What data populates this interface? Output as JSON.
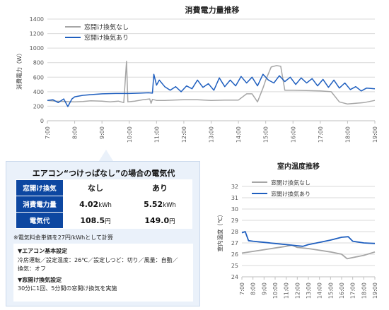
{
  "chart_data": [
    {
      "type": "line",
      "title": "消費電力量推移",
      "ylabel": "消費電力（W）",
      "ylim": [
        0,
        1400
      ],
      "yticks": [
        "0",
        "200",
        "400",
        "600",
        "800",
        "1000",
        "1200",
        "1400"
      ],
      "x_labels": [
        "7:00",
        "8:00",
        "9:00",
        "10:00",
        "11:00",
        "12:00",
        "13:00",
        "14:00",
        "15:00",
        "16:00",
        "17:00",
        "18:00",
        "19:00"
      ],
      "legend": "top-left",
      "series": [
        {
          "name": "窓開け換気なし",
          "color": "#a6a6a6",
          "points": [
            [
              7,
              280
            ],
            [
              7.3,
              270
            ],
            [
              7.6,
              265
            ],
            [
              8.0,
              260
            ],
            [
              8.3,
              265
            ],
            [
              8.6,
              275
            ],
            [
              9.0,
              270
            ],
            [
              9.3,
              260
            ],
            [
              9.6,
              270
            ],
            [
              9.8,
              250
            ],
            [
              9.9,
              820
            ],
            [
              9.95,
              260
            ],
            [
              10.2,
              270
            ],
            [
              10.5,
              290
            ],
            [
              10.75,
              300
            ],
            [
              10.8,
              240
            ],
            [
              10.85,
              295
            ],
            [
              11.0,
              280
            ],
            [
              11.3,
              280
            ],
            [
              11.6,
              285
            ],
            [
              12.0,
              290
            ],
            [
              12.5,
              290
            ],
            [
              13.0,
              280
            ],
            [
              13.5,
              285
            ],
            [
              14.0,
              285
            ],
            [
              14.3,
              370
            ],
            [
              14.5,
              370
            ],
            [
              14.7,
              260
            ],
            [
              14.9,
              450
            ],
            [
              15.0,
              560
            ],
            [
              15.2,
              740
            ],
            [
              15.4,
              760
            ],
            [
              15.55,
              750
            ],
            [
              15.7,
              420
            ],
            [
              16.0,
              420
            ],
            [
              16.5,
              415
            ],
            [
              17.0,
              410
            ],
            [
              17.4,
              400
            ],
            [
              17.7,
              260
            ],
            [
              18.0,
              230
            ],
            [
              18.3,
              240
            ],
            [
              18.6,
              250
            ],
            [
              19.0,
              280
            ]
          ]
        },
        {
          "name": "窓開け換気あり",
          "color": "#1f5fbf",
          "points": [
            [
              7,
              280
            ],
            [
              7.2,
              290
            ],
            [
              7.4,
              250
            ],
            [
              7.6,
              300
            ],
            [
              7.75,
              195
            ],
            [
              7.9,
              300
            ],
            [
              8.0,
              330
            ],
            [
              8.3,
              350
            ],
            [
              8.6,
              360
            ],
            [
              9.0,
              370
            ],
            [
              9.5,
              375
            ],
            [
              10.0,
              375
            ],
            [
              10.4,
              380
            ],
            [
              10.7,
              385
            ],
            [
              10.85,
              380
            ],
            [
              10.9,
              640
            ],
            [
              11.0,
              490
            ],
            [
              11.1,
              560
            ],
            [
              11.3,
              470
            ],
            [
              11.5,
              420
            ],
            [
              11.7,
              470
            ],
            [
              11.9,
              400
            ],
            [
              12.1,
              480
            ],
            [
              12.3,
              440
            ],
            [
              12.5,
              560
            ],
            [
              12.7,
              460
            ],
            [
              12.9,
              510
            ],
            [
              13.1,
              420
            ],
            [
              13.3,
              590
            ],
            [
              13.5,
              470
            ],
            [
              13.7,
              560
            ],
            [
              13.9,
              480
            ],
            [
              14.1,
              610
            ],
            [
              14.3,
              520
            ],
            [
              14.5,
              600
            ],
            [
              14.7,
              480
            ],
            [
              14.9,
              640
            ],
            [
              15.1,
              560
            ],
            [
              15.3,
              520
            ],
            [
              15.5,
              620
            ],
            [
              15.7,
              540
            ],
            [
              15.9,
              600
            ],
            [
              16.1,
              500
            ],
            [
              16.3,
              590
            ],
            [
              16.5,
              520
            ],
            [
              16.7,
              580
            ],
            [
              16.9,
              480
            ],
            [
              17.1,
              570
            ],
            [
              17.3,
              460
            ],
            [
              17.5,
              560
            ],
            [
              17.7,
              450
            ],
            [
              17.9,
              520
            ],
            [
              18.1,
              430
            ],
            [
              18.3,
              470
            ],
            [
              18.5,
              410
            ],
            [
              18.7,
              450
            ],
            [
              19.0,
              440
            ]
          ]
        }
      ]
    },
    {
      "type": "line",
      "title": "室内温度推移",
      "ylabel": "室内温度（℃）",
      "ylim": [
        24,
        32
      ],
      "yticks": [
        "24",
        "25",
        "26",
        "27",
        "28",
        "29",
        "30",
        "31",
        "32"
      ],
      "x_labels": [
        "7:00",
        "8:00",
        "9:00",
        "10:00",
        "11:00",
        "12:00",
        "13:00",
        "14:00",
        "15:00",
        "16:00",
        "17:00",
        "18:00",
        "19:00"
      ],
      "legend": "top-left",
      "series": [
        {
          "name": "窓開け換気なし",
          "color": "#a6a6a6",
          "points": [
            [
              7,
              26.1
            ],
            [
              8,
              26.25
            ],
            [
              9,
              26.4
            ],
            [
              10,
              26.55
            ],
            [
              11,
              26.7
            ],
            [
              11.5,
              26.8
            ],
            [
              12,
              26.6
            ],
            [
              13,
              26.5
            ],
            [
              14,
              26.35
            ],
            [
              15,
              26.2
            ],
            [
              16,
              26.0
            ],
            [
              16.5,
              25.6
            ],
            [
              17,
              25.7
            ],
            [
              18,
              25.9
            ],
            [
              19,
              26.2
            ]
          ]
        },
        {
          "name": "窓開け換気あり",
          "color": "#1f5fbf",
          "points": [
            [
              7,
              27.9
            ],
            [
              7.3,
              28.0
            ],
            [
              7.6,
              27.2
            ],
            [
              8,
              27.15
            ],
            [
              9,
              27.05
            ],
            [
              10,
              26.95
            ],
            [
              11,
              26.85
            ],
            [
              12,
              26.75
            ],
            [
              12.5,
              26.7
            ],
            [
              13,
              26.85
            ],
            [
              14,
              27.05
            ],
            [
              15,
              27.25
            ],
            [
              16,
              27.5
            ],
            [
              16.6,
              27.55
            ],
            [
              17,
              27.15
            ],
            [
              18,
              27.0
            ],
            [
              19,
              26.95
            ]
          ]
        }
      ]
    }
  ],
  "cost_card": {
    "title": "エアコン“つけっぱなし”の場合の電気代",
    "columns": [
      "窓開け換気",
      "なし",
      "あり"
    ],
    "rows": [
      {
        "label": "消費電力量",
        "none": "4.02",
        "with": "5.52",
        "unit": "kWh"
      },
      {
        "label": "電気代",
        "none": "108.5",
        "with": "149.0",
        "unit": "円"
      }
    ],
    "note": "※電気料金単価を27円/kWhとして計算",
    "settings": {
      "aircon_heading": "▼エアコン基本設定",
      "aircon_line1": "冷房運転／設定温度：26℃／設定しつど：切り／風量：自動／",
      "aircon_line2": "換気：オフ",
      "window_heading": "▼窓開け換気設定",
      "window_line": "30分に1回、5分間の窓開け換気を実施"
    }
  }
}
